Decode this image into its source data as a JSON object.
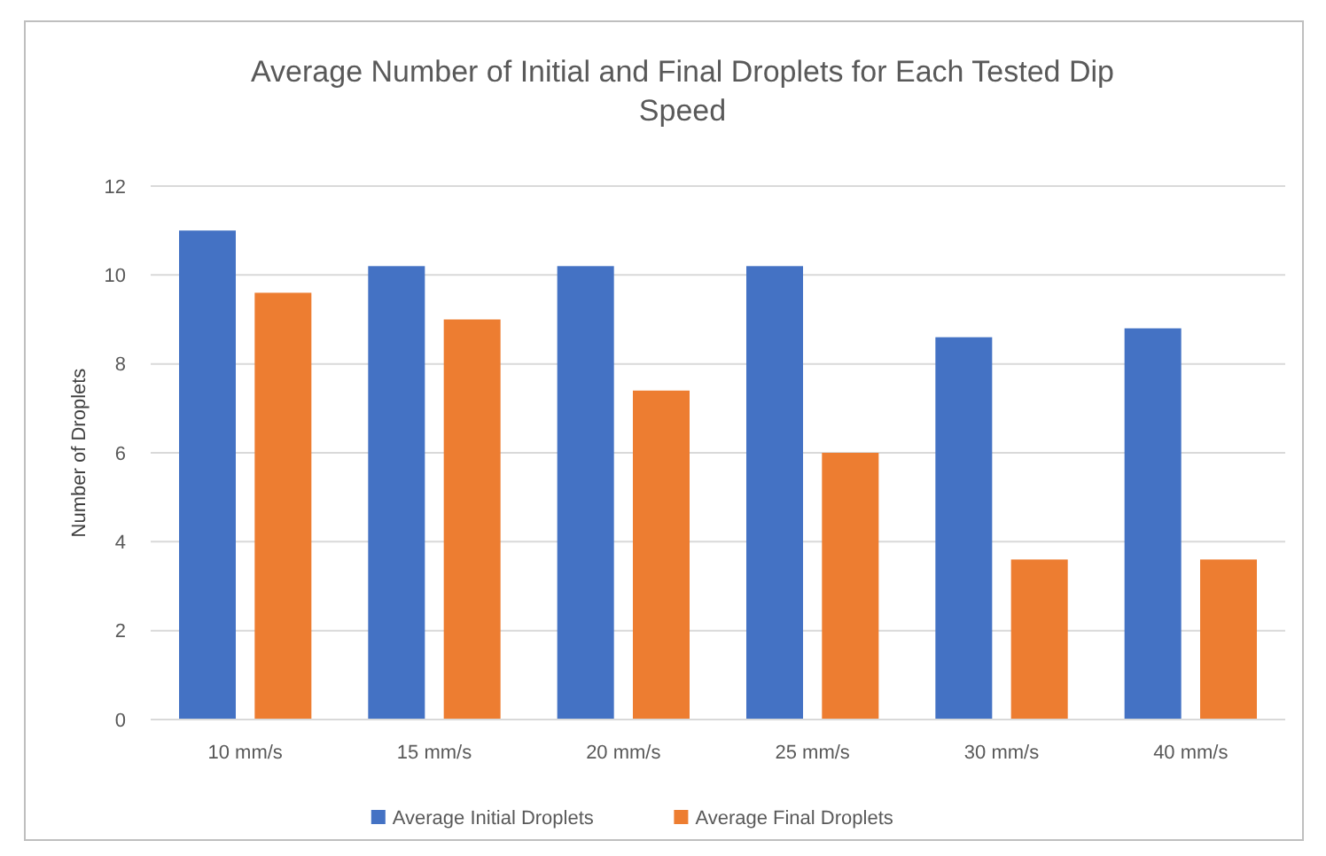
{
  "chart_data": {
    "type": "bar",
    "title": "Average Number of Initial and Final Droplets for Each Tested Dip Speed",
    "ylabel": "Number of Droplets",
    "categories": [
      "10 mm/s",
      "15 mm/s",
      "20 mm/s",
      "25 mm/s",
      "30 mm/s",
      "40 mm/s"
    ],
    "series": [
      {
        "name": "Average Initial Droplets",
        "color": "#4472c4",
        "values": [
          11,
          10.2,
          10.2,
          10.2,
          8.6,
          8.8
        ]
      },
      {
        "name": "Average Final Droplets",
        "color": "#ed7d31",
        "values": [
          9.6,
          9,
          7.4,
          6,
          3.6,
          3.6
        ]
      }
    ],
    "ylim": [
      0,
      12
    ],
    "yticks": [
      0,
      2,
      4,
      6,
      8,
      10,
      12
    ],
    "grid": "y",
    "legend": "bottom"
  }
}
